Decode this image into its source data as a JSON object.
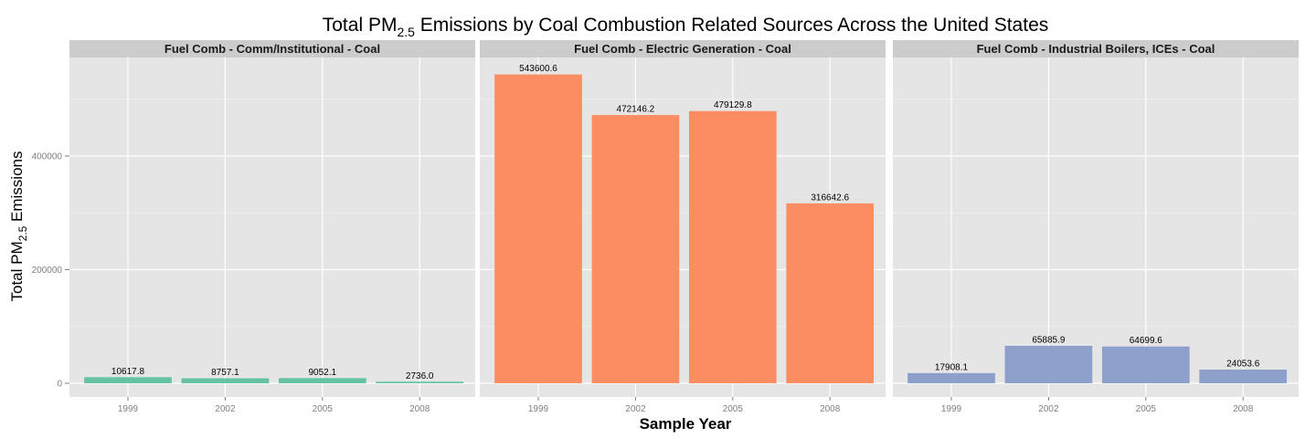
{
  "chart_data": {
    "type": "bar",
    "title": {
      "prefix": "Total PM",
      "subscript": "2.5",
      "suffix": " Emissions by Coal Combustion Related Sources Across the United States"
    },
    "xlabel": "Sample Year",
    "ylabel": {
      "prefix": "Total PM",
      "subscript": "2.5",
      "suffix": " Emissions"
    },
    "ylim": [
      0,
      560000
    ],
    "y_ticks": [
      0,
      200000,
      400000
    ],
    "categories": [
      "1999",
      "2002",
      "2005",
      "2008"
    ],
    "grid": true,
    "legend": "none",
    "panels": [
      {
        "name": "Fuel Comb - Comm/Institutional - Coal",
        "color": "#66c2a5",
        "values": [
          10617.8,
          8757.1,
          9052.1,
          2736.0
        ],
        "labels": [
          "10617.8",
          "8757.1",
          "9052.1",
          "2736.0"
        ]
      },
      {
        "name": "Fuel Comb - Electric Generation - Coal",
        "color": "#fc8d62",
        "values": [
          543600.6,
          472146.2,
          479129.8,
          316642.6
        ],
        "labels": [
          "543600.6",
          "472146.2",
          "479129.8",
          "316642.6"
        ]
      },
      {
        "name": "Fuel Comb - Industrial Boilers, ICEs - Coal",
        "color": "#8da0cb",
        "values": [
          17908.1,
          65885.9,
          64699.6,
          24053.6
        ],
        "labels": [
          "17908.1",
          "65885.9",
          "64699.6",
          "24053.6"
        ]
      }
    ]
  }
}
